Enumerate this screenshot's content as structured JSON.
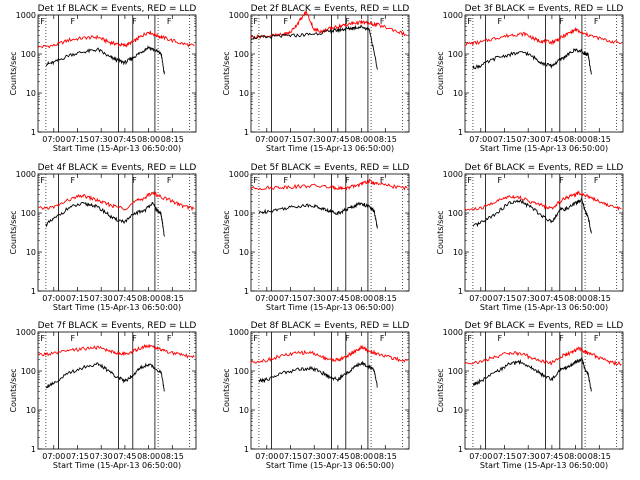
{
  "detector_labels": [
    "1f",
    "2f",
    "3f",
    "4f",
    "5f",
    "6f",
    "7f",
    "8f",
    "9f"
  ],
  "title_suffix": "BLACK = Events, RED = LLD",
  "title_prefix": "Det",
  "ylabel": "Counts/sec",
  "xlabel": "Start Time (15-Apr-13 06:50:00)",
  "marker_label": "F",
  "colors": {
    "events": "#000000",
    "lld": "#ff0000"
  },
  "chart_data": {
    "type": "line",
    "x_unit": "minutes after 06:50:00",
    "x_tick_labels": [
      "07:00",
      "07:15",
      "07:30",
      "07:45",
      "08:00",
      "08:15"
    ],
    "x_tick_minutes": [
      10,
      25,
      40,
      55,
      70,
      85
    ],
    "xlim": [
      0,
      100
    ],
    "ylim": [
      1,
      1000
    ],
    "y_scale": "log",
    "y_tick_labels": [
      "1",
      "10",
      "100",
      "1000"
    ],
    "y_tick_values": [
      1,
      10,
      100,
      1000
    ],
    "dotted_lines_minutes": [
      5,
      76,
      96
    ],
    "solid_lines_minutes": [
      13,
      51,
      60,
      74
    ],
    "marker_minutes": [
      3,
      22,
      61,
      83
    ],
    "panels": [
      {
        "events": {
          "x": [
            5,
            10,
            20,
            30,
            38,
            45,
            50,
            55,
            60,
            65,
            70,
            75,
            78,
            80
          ],
          "y": [
            55,
            60,
            95,
            115,
            130,
            85,
            70,
            60,
            80,
            110,
            150,
            120,
            100,
            30
          ]
        },
        "lld": {
          "x": [
            0,
            10,
            20,
            30,
            38,
            45,
            50,
            55,
            60,
            65,
            70,
            75,
            80,
            90,
            99
          ],
          "y": [
            150,
            165,
            230,
            260,
            270,
            200,
            180,
            165,
            200,
            280,
            370,
            300,
            260,
            190,
            160
          ]
        }
      },
      {
        "events": {
          "x": [
            0,
            10,
            20,
            30,
            40,
            50,
            55,
            60,
            65,
            70,
            75,
            80
          ],
          "y": [
            260,
            270,
            290,
            300,
            330,
            380,
            410,
            440,
            470,
            500,
            420,
            40
          ]
        },
        "lld": {
          "x": [
            0,
            10,
            20,
            25,
            30,
            35,
            40,
            45,
            50,
            55,
            60,
            65,
            70,
            75,
            80,
            90,
            99
          ],
          "y": [
            270,
            290,
            310,
            360,
            650,
            1200,
            420,
            380,
            450,
            500,
            560,
            620,
            650,
            600,
            560,
            420,
            300
          ]
        }
      },
      {
        "events": {
          "x": [
            5,
            10,
            20,
            30,
            38,
            45,
            50,
            55,
            60,
            65,
            70,
            75,
            78,
            80
          ],
          "y": [
            45,
            50,
            80,
            100,
            110,
            75,
            55,
            50,
            70,
            95,
            130,
            110,
            90,
            30
          ]
        },
        "lld": {
          "x": [
            0,
            10,
            20,
            30,
            38,
            45,
            50,
            55,
            60,
            65,
            70,
            75,
            80,
            90,
            99
          ],
          "y": [
            180,
            200,
            260,
            310,
            330,
            230,
            210,
            200,
            250,
            330,
            420,
            330,
            290,
            220,
            190
          ]
        }
      },
      {
        "events": {
          "x": [
            5,
            10,
            20,
            28,
            35,
            42,
            48,
            55,
            62,
            68,
            72,
            76,
            78,
            80
          ],
          "y": [
            50,
            70,
            140,
            170,
            160,
            110,
            70,
            60,
            100,
            120,
            180,
            110,
            90,
            25
          ]
        },
        "lld": {
          "x": [
            0,
            10,
            20,
            28,
            35,
            42,
            48,
            55,
            62,
            68,
            72,
            78,
            85,
            92,
            99
          ],
          "y": [
            130,
            140,
            220,
            280,
            230,
            180,
            150,
            130,
            200,
            250,
            330,
            260,
            200,
            150,
            130
          ]
        }
      },
      {
        "events": {
          "x": [
            5,
            10,
            20,
            30,
            38,
            45,
            50,
            55,
            60,
            65,
            70,
            75,
            78,
            80
          ],
          "y": [
            100,
            110,
            130,
            150,
            160,
            130,
            110,
            100,
            120,
            150,
            180,
            140,
            110,
            40
          ]
        },
        "lld": {
          "x": [
            0,
            10,
            20,
            30,
            40,
            50,
            55,
            60,
            65,
            70,
            75,
            80,
            90,
            99
          ],
          "y": [
            430,
            440,
            460,
            480,
            500,
            460,
            440,
            430,
            480,
            560,
            650,
            560,
            480,
            430
          ]
        }
      },
      {
        "events": {
          "x": [
            5,
            10,
            20,
            28,
            35,
            42,
            48,
            55,
            60,
            65,
            70,
            74,
            76,
            78,
            80
          ],
          "y": [
            45,
            55,
            100,
            180,
            200,
            140,
            90,
            60,
            120,
            130,
            180,
            220,
            110,
            80,
            30
          ]
        },
        "lld": {
          "x": [
            0,
            10,
            20,
            28,
            35,
            42,
            48,
            55,
            62,
            68,
            72,
            78,
            85,
            92,
            99
          ],
          "y": [
            120,
            130,
            200,
            270,
            250,
            190,
            160,
            130,
            230,
            280,
            330,
            270,
            200,
            150,
            130
          ]
        }
      },
      {
        "events": {
          "x": [
            5,
            10,
            20,
            30,
            38,
            45,
            50,
            55,
            60,
            65,
            70,
            75,
            78,
            80
          ],
          "y": [
            40,
            50,
            90,
            130,
            150,
            100,
            70,
            55,
            80,
            120,
            150,
            110,
            90,
            30
          ]
        },
        "lld": {
          "x": [
            0,
            10,
            20,
            30,
            38,
            45,
            50,
            55,
            60,
            65,
            70,
            75,
            80,
            90,
            99
          ],
          "y": [
            260,
            280,
            330,
            380,
            400,
            330,
            290,
            270,
            320,
            390,
            450,
            380,
            330,
            260,
            230
          ]
        }
      },
      {
        "events": {
          "x": [
            5,
            10,
            20,
            30,
            38,
            45,
            50,
            55,
            60,
            65,
            70,
            75,
            78,
            80
          ],
          "y": [
            55,
            60,
            90,
            110,
            120,
            90,
            70,
            60,
            85,
            120,
            160,
            130,
            100,
            40
          ]
        },
        "lld": {
          "x": [
            0,
            10,
            20,
            30,
            38,
            45,
            50,
            55,
            60,
            65,
            70,
            75,
            80,
            90,
            99
          ],
          "y": [
            170,
            190,
            250,
            290,
            300,
            230,
            200,
            190,
            230,
            310,
            400,
            320,
            280,
            210,
            180
          ]
        }
      },
      {
        "events": {
          "x": [
            5,
            10,
            20,
            28,
            35,
            42,
            48,
            55,
            60,
            65,
            70,
            74,
            76,
            78,
            80
          ],
          "y": [
            45,
            55,
            95,
            150,
            170,
            120,
            85,
            60,
            110,
            125,
            170,
            200,
            110,
            80,
            30
          ]
        },
        "lld": {
          "x": [
            0,
            10,
            20,
            28,
            35,
            42,
            48,
            55,
            62,
            68,
            72,
            78,
            85,
            92,
            99
          ],
          "y": [
            160,
            170,
            240,
            290,
            280,
            220,
            180,
            160,
            250,
            300,
            380,
            290,
            220,
            170,
            150
          ]
        }
      }
    ]
  }
}
